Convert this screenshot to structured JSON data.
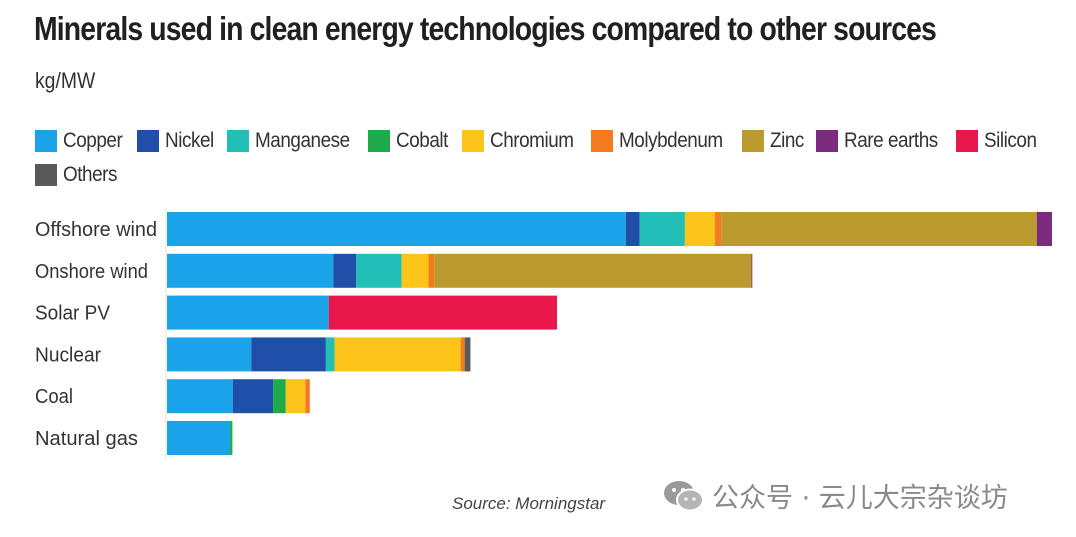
{
  "chart_data": {
    "type": "bar",
    "orientation": "horizontal",
    "stacked": true,
    "title": "Minerals used in clean energy technologies compared to other sources",
    "unit_label": "kg/MW",
    "xlabel": "",
    "ylabel": "",
    "xlim": [
      0,
      15500
    ],
    "categories": [
      "Offshore wind",
      "Onshore wind",
      "Solar PV",
      "Nuclear",
      "Coal",
      "Natural gas"
    ],
    "series": [
      {
        "name": "Copper",
        "color": "#1aa3e8",
        "values": [
          8000,
          2900,
          2820,
          1470,
          1150,
          1100
        ]
      },
      {
        "name": "Nickel",
        "color": "#1f4fa8",
        "values": [
          240,
          400,
          0,
          1300,
          700,
          0
        ]
      },
      {
        "name": "Manganese",
        "color": "#22bfb6",
        "values": [
          790,
          790,
          0,
          150,
          0,
          0
        ]
      },
      {
        "name": "Cobalt",
        "color": "#1faa4a",
        "values": [
          0,
          0,
          0,
          0,
          220,
          40
        ]
      },
      {
        "name": "Chromium",
        "color": "#fcc419",
        "values": [
          525,
          470,
          0,
          2200,
          340,
          0
        ]
      },
      {
        "name": "Molybdenum",
        "color": "#f47c20",
        "values": [
          110,
          100,
          0,
          70,
          80,
          0
        ]
      },
      {
        "name": "Zinc",
        "color": "#bc9a2e",
        "values": [
          5500,
          5530,
          0,
          0,
          0,
          0
        ]
      },
      {
        "name": "Rare earths",
        "color": "#7b2a7d",
        "values": [
          265,
          15,
          0,
          0,
          0,
          0
        ]
      },
      {
        "name": "Silicon",
        "color": "#e8174c",
        "values": [
          0,
          0,
          3980,
          0,
          0,
          0
        ]
      },
      {
        "name": "Others",
        "color": "#595959",
        "values": [
          0,
          0,
          0,
          100,
          0,
          0
        ]
      }
    ]
  },
  "source": "Source: Morningstar",
  "watermark": "公众号 · 云儿大宗杂谈坊"
}
